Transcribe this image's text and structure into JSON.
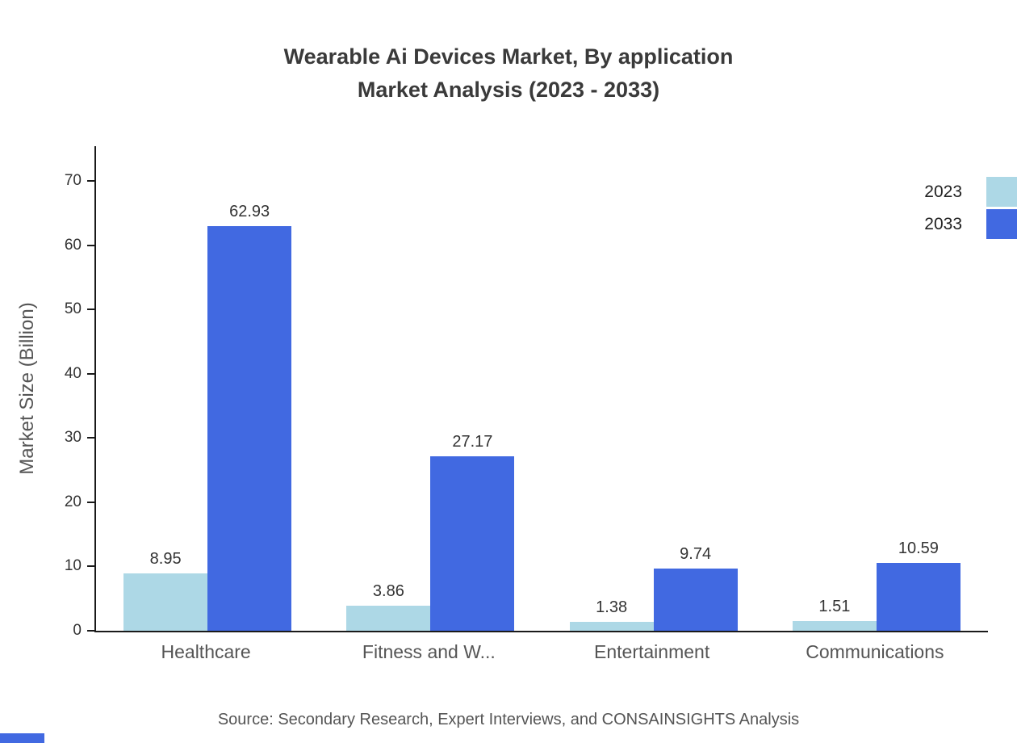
{
  "title": {
    "line1": "Wearable Ai Devices Market, By application",
    "line2": "Market Analysis (2023 - 2033)"
  },
  "ylabel": "Market Size (Billion)",
  "source": "Source: Secondary Research, Expert Interviews, and CONSAINSIGHTS Analysis",
  "colors": {
    "series_2023": "#add8e6",
    "series_2033": "#4169e1",
    "axis": "#1a1a1a",
    "text_dark": "#333333",
    "text_gray": "#555555"
  },
  "legend": [
    {
      "label": "2023",
      "color": "#add8e6"
    },
    {
      "label": "2033",
      "color": "#4169e1"
    }
  ],
  "chart_data": {
    "type": "bar",
    "title": "Wearable Ai Devices Market, By application Market Analysis (2023 - 2033)",
    "categories": [
      "Healthcare",
      "Fitness and W...",
      "Entertainment",
      "Communications"
    ],
    "series": [
      {
        "name": "2023",
        "color": "#add8e6",
        "values": [
          8.95,
          3.86,
          1.38,
          1.51
        ]
      },
      {
        "name": "2033",
        "color": "#4169e1",
        "values": [
          62.93,
          27.17,
          9.74,
          10.59
        ]
      }
    ],
    "xlabel": "",
    "ylabel": "Market Size (Billion)",
    "ylim": [
      0,
      75
    ],
    "yticks": [
      0,
      10,
      20,
      30,
      40,
      50,
      60,
      70
    ],
    "grid": false,
    "legend_position": "top-right",
    "value_labels": true
  }
}
